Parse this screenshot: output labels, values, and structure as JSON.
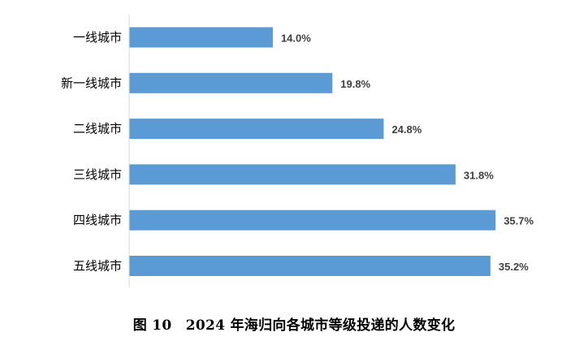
{
  "figure_caption": "图 10　2024 年海归向各城市等级投递的人数变化",
  "colors": {
    "bar": "#5b9bd5",
    "axis": "#d9d9d9",
    "data_label": "#404040"
  },
  "chart_data": {
    "type": "bar",
    "orientation": "horizontal",
    "categories": [
      "一线城市",
      "新一线城市",
      "二线城市",
      "三线城市",
      "四线城市",
      "五线城市"
    ],
    "values": [
      14.0,
      19.8,
      24.8,
      31.8,
      35.7,
      35.2
    ],
    "data_labels": [
      "14.0%",
      "19.8%",
      "24.8%",
      "31.8%",
      "35.7%",
      "35.2%"
    ],
    "unit": "%",
    "xlim": [
      0,
      36
    ],
    "grid": false,
    "legend": false
  }
}
